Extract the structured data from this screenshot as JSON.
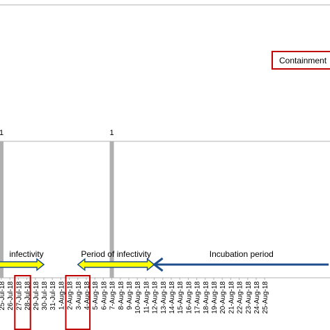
{
  "chart_data": {
    "type": "bar",
    "title": "",
    "xlabel": "",
    "ylabel": "",
    "grid": false,
    "categories": [
      "25-Jul-18",
      "26-Jul-18",
      "27-Jul-18",
      "28-Jul-18",
      "29-Jul-18",
      "30-Jul-18",
      "31-Jul-18",
      "1-Aug-18",
      "2-Aug-18",
      "3-Aug-18",
      "4-Aug-18",
      "5-Aug-18",
      "6-Aug-18",
      "7-Aug-18",
      "8-Aug-18",
      "9-Aug-18",
      "10-Aug-18",
      "11-Aug-18",
      "12-Aug-18",
      "13-Aug-18",
      "14-Aug-18",
      "15-Aug-18",
      "16-Aug-18",
      "17-Aug-18",
      "18-Aug-18",
      "19-Aug-18",
      "20-Aug-18",
      "21-Aug-18",
      "22-Aug-18",
      "23-Aug-18",
      "24-Aug-18",
      "25-Aug-18"
    ],
    "series": [
      {
        "values": [
          1,
          0,
          0,
          0,
          0,
          0,
          0,
          0,
          0,
          0,
          0,
          0,
          0,
          1,
          0,
          0,
          0,
          0,
          0,
          0,
          0,
          0,
          0,
          0,
          0,
          0,
          0,
          0,
          0,
          0,
          0,
          0
        ]
      }
    ],
    "bar_labels": [
      {
        "category": "25-Jul-18",
        "text": "1"
      },
      {
        "category": "7-Aug-18",
        "text": "1"
      }
    ],
    "highlighted_dates": [
      "27-Jul-18",
      "28-Jul-18",
      "2-Aug-18",
      "3-Aug-18",
      "4-Aug-18"
    ],
    "annotations": [
      {
        "label": "infectivity",
        "arrow": "double",
        "color": "#ffff00",
        "from": "25-Jul-18",
        "to": "30-Jul-18"
      },
      {
        "label": "Period of infectivity",
        "arrow": "double",
        "color": "#ffff00",
        "from": "3-Aug-18",
        "to": "12-Aug-18"
      },
      {
        "label": "Incubation period",
        "arrow": "left",
        "color": "#1f4e8c",
        "from": "12-Aug-18",
        "to": "25-Aug-18"
      }
    ],
    "legend": {
      "label": "Containment",
      "position": "top-right"
    },
    "colors": {
      "bar": "#b0b0b0",
      "highlight_box": "#c00000",
      "legend_border": "#c00000",
      "axis": "#b0b0b0"
    }
  }
}
